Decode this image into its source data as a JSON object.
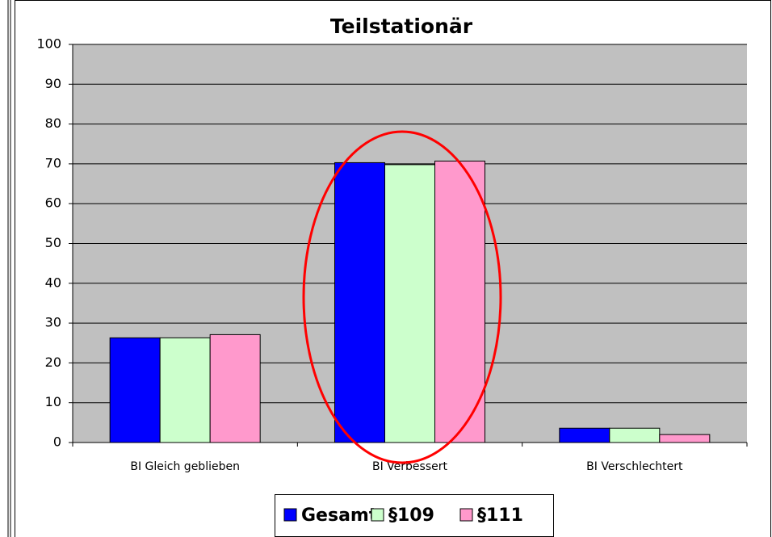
{
  "chart_data": {
    "type": "bar",
    "title": "Teilstationär",
    "categories": [
      "BI Gleich geblieben",
      "BI Verbessert",
      "BI Verschlechtert"
    ],
    "series": [
      {
        "name": "Gesamt",
        "color": "#0000ff",
        "values": [
          26.3,
          70.3,
          3.6
        ]
      },
      {
        "name": "§109",
        "color": "#ccffcc",
        "values": [
          26.3,
          69.8,
          3.6
        ]
      },
      {
        "name": "§111",
        "color": "#ff99cc",
        "values": [
          27.1,
          70.7,
          2.0
        ]
      }
    ],
    "ylim": [
      0,
      100
    ],
    "yticks": [
      0,
      10,
      20,
      30,
      40,
      50,
      60,
      70,
      80,
      90,
      100
    ],
    "grid": true,
    "legend": "bottom"
  }
}
